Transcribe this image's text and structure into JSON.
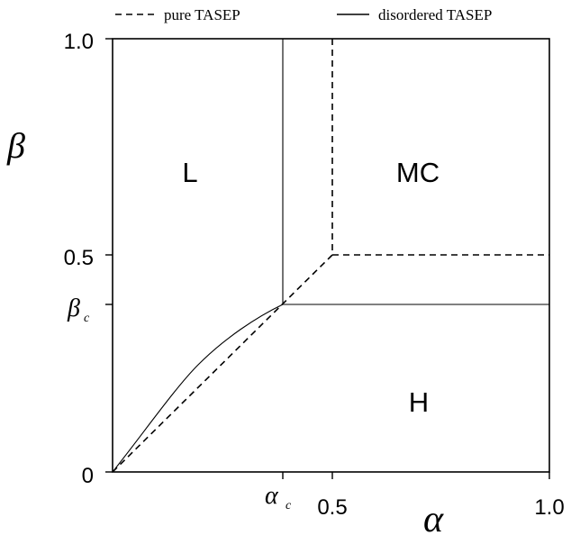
{
  "legend": {
    "pure_label": "pure TASEP",
    "disordered_label": "disordered TASEP"
  },
  "axes": {
    "x_label": "α",
    "y_label": "β",
    "x_ticks": [
      "0.5",
      "1.0"
    ],
    "y_ticks": [
      "1.0",
      "0.5",
      "0"
    ],
    "alpha_c_symbol": "α",
    "alpha_c_sub": "c",
    "beta_c_symbol": "β",
    "beta_c_sub": "c"
  },
  "regions": {
    "low_density": "L",
    "max_current": "MC",
    "high_density": "H"
  },
  "colors": {
    "line": "#000000",
    "frame": "#000000",
    "text": "#000000"
  }
}
